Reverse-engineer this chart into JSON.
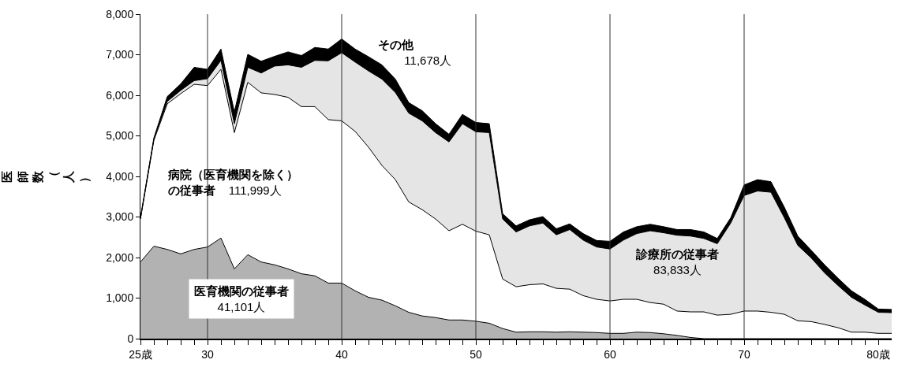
{
  "chart_data": {
    "type": "area",
    "stacked": true,
    "ylabel": "医師数（人）",
    "x": [
      25,
      26,
      27,
      28,
      29,
      30,
      31,
      32,
      33,
      34,
      35,
      36,
      37,
      38,
      39,
      40,
      41,
      42,
      43,
      44,
      45,
      46,
      47,
      48,
      49,
      50,
      51,
      52,
      53,
      54,
      55,
      56,
      57,
      58,
      59,
      60,
      61,
      62,
      63,
      64,
      65,
      66,
      67,
      68,
      69,
      70,
      71,
      72,
      73,
      74,
      75,
      76,
      77,
      78,
      79,
      80,
      81
    ],
    "series": [
      {
        "name": "医育機関の従事者",
        "color": "#b2b2b2",
        "values": [
          1890,
          2280,
          2200,
          2090,
          2200,
          2260,
          2480,
          1720,
          2070,
          1890,
          1820,
          1720,
          1600,
          1550,
          1370,
          1370,
          1180,
          1020,
          950,
          810,
          650,
          560,
          520,
          460,
          460,
          430,
          380,
          250,
          160,
          170,
          170,
          160,
          170,
          160,
          150,
          130,
          130,
          160,
          150,
          120,
          80,
          30,
          0,
          0,
          0,
          0,
          0,
          0,
          0,
          0,
          0,
          0,
          0,
          0,
          0,
          0,
          0
        ]
      },
      {
        "name": "病院（医育機関を除く）の従事者",
        "color": "#ffffff",
        "values": [
          1060,
          2610,
          3590,
          3950,
          4070,
          3980,
          4160,
          3360,
          4250,
          4170,
          4200,
          4230,
          4120,
          4170,
          4030,
          4000,
          3930,
          3700,
          3320,
          3110,
          2720,
          2620,
          2430,
          2200,
          2360,
          2220,
          2180,
          1220,
          1120,
          1160,
          1180,
          1080,
          1050,
          900,
          820,
          800,
          840,
          810,
          740,
          730,
          600,
          630,
          660,
          580,
          600,
          680,
          680,
          650,
          600,
          440,
          420,
          350,
          270,
          160,
          160,
          130,
          130
        ]
      },
      {
        "name": "診療所の従事者",
        "color": "#e5e5e5",
        "values": [
          10,
          30,
          60,
          80,
          90,
          170,
          220,
          220,
          370,
          490,
          700,
          800,
          970,
          1140,
          1450,
          1680,
          1710,
          1880,
          2130,
          2150,
          2190,
          2190,
          2130,
          2190,
          2480,
          2450,
          2520,
          1480,
          1350,
          1450,
          1500,
          1320,
          1470,
          1370,
          1290,
          1280,
          1460,
          1620,
          1770,
          1760,
          1870,
          1870,
          1810,
          1760,
          2250,
          2850,
          2960,
          2960,
          2380,
          1860,
          1570,
          1270,
          1040,
          860,
          670,
          520,
          510
        ]
      },
      {
        "name": "その他",
        "color": "#000000",
        "values": [
          30,
          30,
          120,
          160,
          330,
          230,
          280,
          290,
          320,
          290,
          240,
          320,
          290,
          320,
          290,
          340,
          320,
          350,
          350,
          330,
          260,
          250,
          220,
          190,
          230,
          230,
          220,
          130,
          150,
          150,
          160,
          150,
          140,
          160,
          160,
          190,
          200,
          170,
          160,
          150,
          140,
          160,
          160,
          130,
          130,
          260,
          280,
          260,
          260,
          230,
          190,
          200,
          180,
          160,
          140,
          80,
          80
        ]
      }
    ],
    "annotations": [
      "41,101人",
      "111,999人",
      "83,833人",
      "11,678人"
    ],
    "xlim": [
      25,
      81
    ],
    "xticks": [
      {
        "value": 25,
        "label": "25歳"
      },
      {
        "value": 26,
        "label": null
      },
      {
        "value": 27,
        "label": null
      },
      {
        "value": 28,
        "label": null
      },
      {
        "value": 29,
        "label": null
      },
      30,
      {
        "value": 31,
        "label": null
      },
      {
        "value": 32,
        "label": null
      },
      {
        "value": 33,
        "label": null
      },
      {
        "value": 34,
        "label": null
      },
      {
        "value": 35,
        "label": null
      },
      {
        "value": 36,
        "label": null
      },
      {
        "value": 37,
        "label": null
      },
      {
        "value": 38,
        "label": null
      },
      {
        "value": 39,
        "label": null
      },
      40,
      {
        "value": 41,
        "label": null
      },
      {
        "value": 42,
        "label": null
      },
      {
        "value": 43,
        "label": null
      },
      {
        "value": 44,
        "label": null
      },
      {
        "value": 45,
        "label": null
      },
      {
        "value": 46,
        "label": null
      },
      {
        "value": 47,
        "label": null
      },
      {
        "value": 48,
        "label": null
      },
      {
        "value": 49,
        "label": null
      },
      50,
      {
        "value": 51,
        "label": null
      },
      {
        "value": 52,
        "label": null
      },
      {
        "value": 53,
        "label": null
      },
      {
        "value": 54,
        "label": null
      },
      {
        "value": 55,
        "label": null
      },
      {
        "value": 56,
        "label": null
      },
      {
        "value": 57,
        "label": null
      },
      {
        "value": 58,
        "label": null
      },
      {
        "value": 59,
        "label": null
      },
      60,
      {
        "value": 61,
        "label": null
      },
      {
        "value": 62,
        "label": null
      },
      {
        "value": 63,
        "label": null
      },
      {
        "value": 64,
        "label": null
      },
      {
        "value": 65,
        "label": null
      },
      {
        "value": 66,
        "label": null
      },
      {
        "value": 67,
        "label": null
      },
      {
        "value": 68,
        "label": null
      },
      {
        "value": 69,
        "label": null
      },
      70,
      {
        "value": 71,
        "label": null
      },
      {
        "value": 72,
        "label": null
      },
      {
        "value": 73,
        "label": null
      },
      {
        "value": 74,
        "label": null
      },
      {
        "value": 75,
        "label": null
      },
      {
        "value": 76,
        "label": null
      },
      {
        "value": 77,
        "label": null
      },
      {
        "value": 78,
        "label": null
      },
      {
        "value": 79,
        "label": null
      },
      {
        "value": 80,
        "label": "80歳"
      }
    ],
    "ylim": [
      0,
      8000
    ],
    "yticks": [
      0,
      {
        "value": 1000,
        "label": "1,000"
      },
      {
        "value": 2000,
        "label": "2,000"
      },
      {
        "value": 3000,
        "label": "3,000"
      },
      {
        "value": 4000,
        "label": "4,000"
      },
      {
        "value": 5000,
        "label": "5,000"
      },
      {
        "value": 6000,
        "label": "6,000"
      },
      {
        "value": 7000,
        "label": "7,000"
      },
      {
        "value": 8000,
        "label": "8,000"
      }
    ],
    "ref_lines": [
      {
        "axis": "x",
        "value": 30,
        "color": "#333333"
      },
      {
        "axis": "x",
        "value": 40,
        "color": "#333333"
      },
      {
        "axis": "x",
        "value": 50,
        "color": "#333333"
      },
      {
        "axis": "x",
        "value": 60,
        "color": "#333333"
      },
      {
        "axis": "x",
        "value": 70,
        "color": "#333333"
      }
    ],
    "legend": false
  }
}
